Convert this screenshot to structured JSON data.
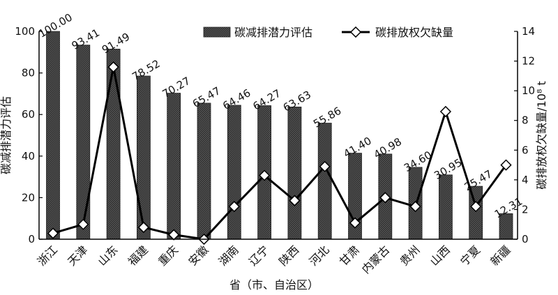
{
  "chart_data": {
    "type": "bar",
    "categories": [
      "浙江",
      "天津",
      "山东",
      "福建",
      "重庆",
      "安徽",
      "湖南",
      "辽宁",
      "陕西",
      "河北",
      "甘肃",
      "内蒙古",
      "贵州",
      "山西",
      "宁夏",
      "新疆"
    ],
    "series": [
      {
        "name": "碳减排潜力评估",
        "type": "bar",
        "axis": "left",
        "values": [
          100.0,
          93.41,
          91.49,
          78.52,
          70.27,
          65.47,
          64.46,
          64.27,
          63.63,
          55.86,
          41.4,
          40.98,
          34.6,
          30.95,
          25.47,
          12.31
        ],
        "labels": [
          "100.00",
          "93.41",
          "91.49",
          "78.52",
          "70.27",
          "65.47",
          "64.46",
          "64.27",
          "63.63",
          "55.86",
          "41.40",
          "40.98",
          "34.60",
          "30.95",
          "25.47",
          "12.31"
        ]
      },
      {
        "name": "碳排放权欠缺量",
        "type": "line",
        "axis": "right",
        "values": [
          0.4,
          1.0,
          11.6,
          0.8,
          0.3,
          0.0,
          2.2,
          4.3,
          2.6,
          4.9,
          1.1,
          2.8,
          2.2,
          8.6,
          2.2,
          5.0
        ]
      }
    ],
    "xlabel": "省（市、自治区）",
    "ylabel": "碳减排潜力评估",
    "y2label": "碳排放权欠缺量/10⁸ t",
    "ylim": [
      0,
      100
    ],
    "y2lim": [
      0,
      14
    ],
    "yticks": [
      "0",
      "20",
      "40",
      "60",
      "80",
      "100"
    ],
    "y2ticks": [
      "0",
      "2",
      "4",
      "6",
      "8",
      "10",
      "12",
      "14"
    ],
    "legend_position": "top-center",
    "grid": false,
    "colors": {
      "bar": "#4a4a4a",
      "line": "#000000",
      "marker_fill": "#ffffff"
    }
  }
}
